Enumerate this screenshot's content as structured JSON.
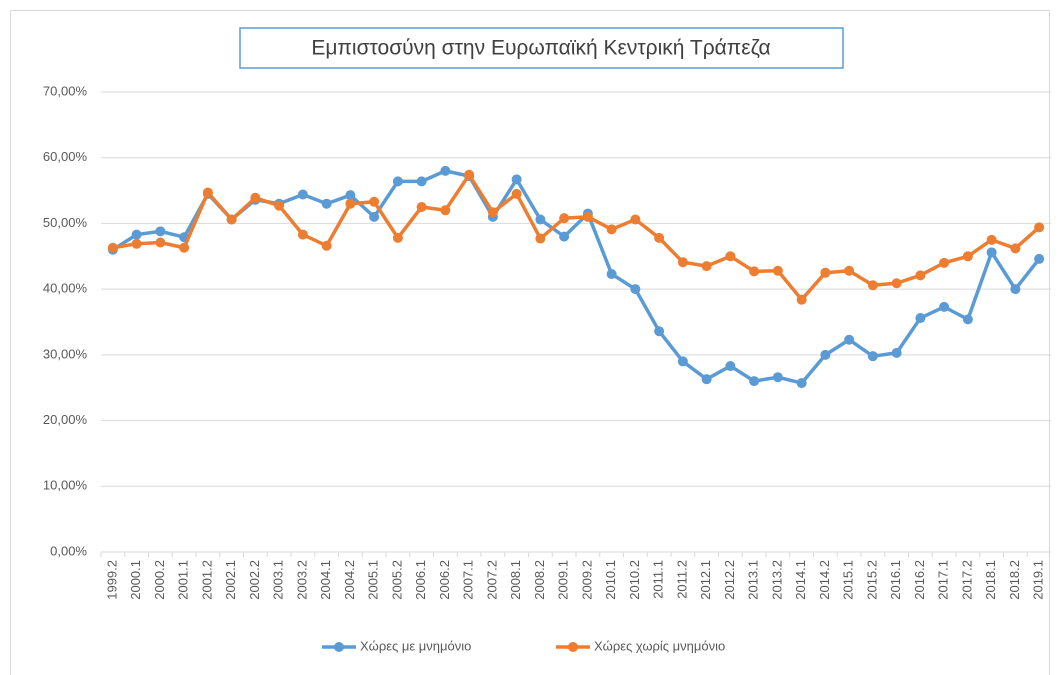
{
  "chart_data": {
    "type": "line",
    "title": "Εμπιστοσύνη στην Ευρωπαϊκή Κεντρική Τράπεζα",
    "categories": [
      "1999.2",
      "2000.1",
      "2000.2",
      "2001.1",
      "2001.2",
      "2002.1",
      "2002.2",
      "2003.1",
      "2003.2",
      "2004.1",
      "2004.2",
      "2005.1",
      "2005.2",
      "2006.1",
      "2006.2",
      "2007.1",
      "2007.2",
      "2008.1",
      "2008.2",
      "2009.1",
      "2009.2",
      "2010.1",
      "2010.2",
      "2011.1",
      "2011.2",
      "2012.1",
      "2012.2",
      "2013.1",
      "2013.2",
      "2014.1",
      "2014.2",
      "2015.1",
      "2015.2",
      "2016.1",
      "2016.2",
      "2017.1",
      "2017.2",
      "2018.1",
      "2018.2",
      "2019.1"
    ],
    "series": [
      {
        "name": "Χώρες με μνημόνιο",
        "color": "#5b9bd5",
        "values": [
          46,
          48.3,
          48.8,
          47.9,
          54.5,
          50.6,
          53.6,
          53,
          54.4,
          53,
          54.3,
          51,
          56.4,
          56.4,
          58,
          57.2,
          51,
          56.7,
          50.6,
          48,
          51.5,
          42.3,
          40,
          33.6,
          29,
          26.3,
          28.3,
          26,
          26.6,
          25.7,
          30,
          32.3,
          29.8,
          30.3,
          35.6,
          37.3,
          35.4,
          45.6,
          40,
          44.6
        ]
      },
      {
        "name": "Χώρες χωρίς μνημόνιο",
        "color": "#ed7d31",
        "values": [
          46.3,
          46.9,
          47.1,
          46.3,
          54.7,
          50.6,
          53.9,
          52.7,
          48.3,
          46.6,
          53,
          53.3,
          47.8,
          52.5,
          52,
          57.4,
          51.7,
          54.5,
          47.7,
          50.8,
          51,
          49.1,
          50.6,
          47.8,
          44.1,
          43.5,
          45,
          42.7,
          42.8,
          38.4,
          42.5,
          42.8,
          40.6,
          40.9,
          42.1,
          44,
          45,
          47.5,
          46.2,
          49.4
        ]
      }
    ],
    "ylim": [
      0,
      70
    ],
    "yticks": [
      {
        "value": 0,
        "label": "0,00%"
      },
      {
        "value": 10,
        "label": "10,00%"
      },
      {
        "value": 20,
        "label": "20,00%"
      },
      {
        "value": 30,
        "label": "30,00%"
      },
      {
        "value": 40,
        "label": "40,00%"
      },
      {
        "value": 50,
        "label": "50,00%"
      },
      {
        "value": 60,
        "label": "60,00%"
      },
      {
        "value": 70,
        "label": "70,00%"
      }
    ],
    "grid": true,
    "legend": "bottom"
  }
}
